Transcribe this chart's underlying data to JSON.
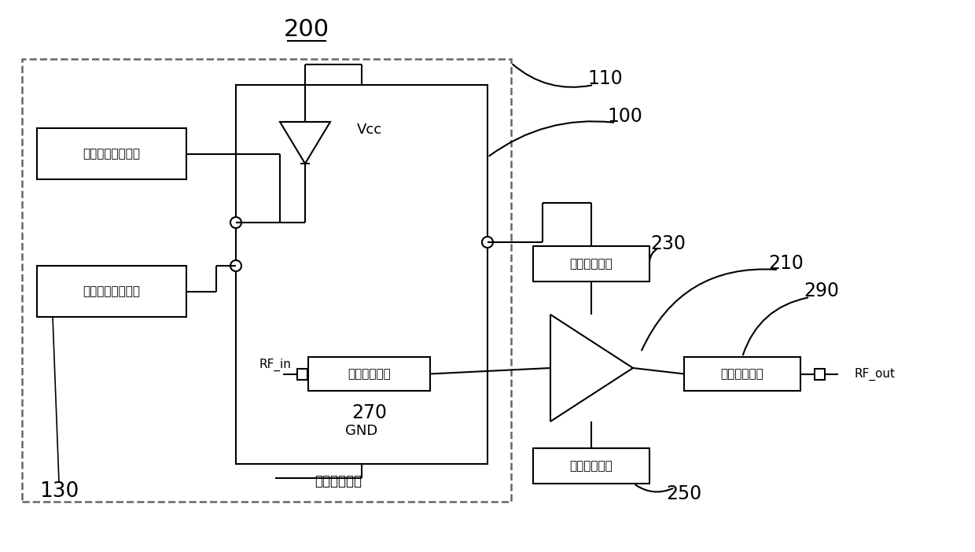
{
  "bg_color": "#ffffff",
  "line_color": "#000000",
  "dash_color": "#666666",
  "lw_main": 1.5,
  "labels": {
    "title": "200",
    "box1": "第一负压偏置电路",
    "box2": "第二负压偏置电路",
    "neg_power": "负压供电模块",
    "vcc": "Vcc",
    "gnd": "GND",
    "input_match": "输入匹配网络",
    "output_match": "输出匹配网络",
    "input_bias": "输入偏置网络",
    "output_bias": "输出偏置网络",
    "rf_in": "RF_in",
    "rf_out": "RF_out"
  },
  "refs": {
    "r200": "200",
    "r110": "110",
    "r100": "100",
    "r130": "130",
    "r230": "230",
    "r210": "210",
    "r290": "290",
    "r270": "270",
    "r250": "250"
  },
  "font_sizes": {
    "title": 22,
    "ref": 17,
    "label": 12,
    "small": 11
  }
}
